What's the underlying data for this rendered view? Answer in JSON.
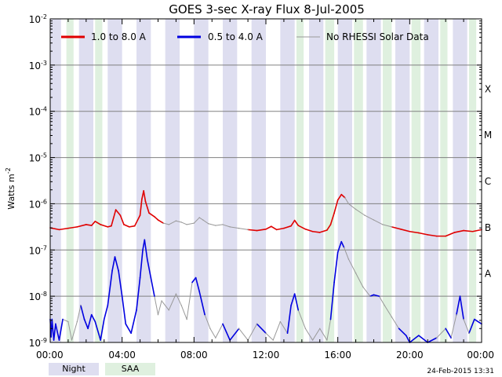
{
  "chart_data": {
    "type": "line",
    "title": "GOES 3-sec X-ray Flux    8-Jul-2005",
    "ylabel": "Watts m",
    "ylabel_sup": "-2",
    "yscale": "log",
    "ylim_exp": [
      -9,
      -2
    ],
    "y_ticks": [
      {
        "exp": -9,
        "label": "10",
        "sup": "-9"
      },
      {
        "exp": -8,
        "label": "10",
        "sup": "-8"
      },
      {
        "exp": -7,
        "label": "10",
        "sup": "-7"
      },
      {
        "exp": -6,
        "label": "10",
        "sup": "-6"
      },
      {
        "exp": -5,
        "label": "10",
        "sup": "-5"
      },
      {
        "exp": -4,
        "label": "10",
        "sup": "-4"
      },
      {
        "exp": -3,
        "label": "10",
        "sup": "-3"
      },
      {
        "exp": -2,
        "label": "10",
        "sup": "-2"
      }
    ],
    "xlim_hours": [
      0,
      24
    ],
    "x_ticks": [
      {
        "h": 0,
        "label": "00:00"
      },
      {
        "h": 4,
        "label": "04:00"
      },
      {
        "h": 8,
        "label": "08:00"
      },
      {
        "h": 12,
        "label": "12:00"
      },
      {
        "h": 16,
        "label": "16:00"
      },
      {
        "h": 20,
        "label": "20:00"
      },
      {
        "h": 24,
        "label": "00:00"
      }
    ],
    "flare_classes": [
      {
        "exp": -4,
        "label": "X"
      },
      {
        "exp": -5,
        "label": "M"
      },
      {
        "exp": -6,
        "label": "C"
      },
      {
        "exp": -7,
        "label": "B"
      },
      {
        "exp": -8,
        "label": "A"
      }
    ],
    "legend": [
      {
        "label": "1.0 to 8.0 A",
        "color": "#e00000"
      },
      {
        "label": "0.5 to 4.0 A",
        "color": "#0000e0"
      },
      {
        "label": "No RHESSI Solar Data",
        "color": "#999999"
      }
    ],
    "band_legend": [
      {
        "label": "Night",
        "color": "#dedef0"
      },
      {
        "label": "SAA",
        "color": "#dff0df"
      }
    ],
    "night_bands": [
      [
        0.0,
        0.6
      ],
      [
        1.6,
        2.4
      ],
      [
        3.2,
        4.0
      ],
      [
        4.8,
        5.6
      ],
      [
        6.4,
        7.2
      ],
      [
        8.0,
        8.8
      ],
      [
        9.6,
        10.4
      ],
      [
        11.2,
        12.0
      ],
      [
        12.8,
        13.6
      ],
      [
        14.4,
        15.2
      ],
      [
        16.0,
        16.8
      ],
      [
        17.6,
        18.4
      ],
      [
        19.2,
        20.0
      ],
      [
        20.8,
        21.6
      ],
      [
        22.4,
        23.2
      ]
    ],
    "saa_bands": [
      [
        0.9,
        1.3
      ],
      [
        2.5,
        2.9
      ],
      [
        13.7,
        14.1
      ],
      [
        15.3,
        15.8
      ],
      [
        16.9,
        17.4
      ],
      [
        18.5,
        19.0
      ],
      [
        20.1,
        20.6
      ],
      [
        21.7,
        22.1
      ],
      [
        23.3,
        23.7
      ]
    ],
    "series": [
      {
        "name": "1.0 to 8.0 A",
        "color": "#e00000",
        "gray_color": "#999999",
        "points": [
          [
            0.0,
            -6.52
          ],
          [
            0.5,
            -6.56
          ],
          [
            1.0,
            -6.53
          ],
          [
            1.5,
            -6.5
          ],
          [
            2.0,
            -6.45
          ],
          [
            2.3,
            -6.47
          ],
          [
            2.5,
            -6.38
          ],
          [
            2.8,
            -6.45
          ],
          [
            3.2,
            -6.5
          ],
          [
            3.4,
            -6.48
          ],
          [
            3.65,
            -6.13
          ],
          [
            3.9,
            -6.25
          ],
          [
            4.1,
            -6.45
          ],
          [
            4.4,
            -6.5
          ],
          [
            4.7,
            -6.48
          ],
          [
            5.0,
            -6.25
          ],
          [
            5.1,
            -5.9
          ],
          [
            5.2,
            -5.72
          ],
          [
            5.3,
            -5.95
          ],
          [
            5.5,
            -6.2
          ],
          [
            5.8,
            -6.28
          ],
          [
            6.0,
            -6.35
          ],
          [
            6.3,
            -6.42
          ],
          [
            6.6,
            -6.45
          ],
          [
            7.0,
            -6.37
          ],
          [
            7.3,
            -6.4
          ],
          [
            7.6,
            -6.45
          ],
          [
            8.0,
            -6.42
          ],
          [
            8.3,
            -6.3
          ],
          [
            8.5,
            -6.35
          ],
          [
            8.8,
            -6.43
          ],
          [
            9.2,
            -6.47
          ],
          [
            9.6,
            -6.45
          ],
          [
            10.0,
            -6.5
          ],
          [
            10.5,
            -6.53
          ],
          [
            11.0,
            -6.56
          ],
          [
            11.5,
            -6.58
          ],
          [
            12.0,
            -6.55
          ],
          [
            12.3,
            -6.49
          ],
          [
            12.6,
            -6.56
          ],
          [
            13.0,
            -6.53
          ],
          [
            13.4,
            -6.48
          ],
          [
            13.6,
            -6.36
          ],
          [
            13.8,
            -6.47
          ],
          [
            14.2,
            -6.55
          ],
          [
            14.6,
            -6.6
          ],
          [
            15.0,
            -6.62
          ],
          [
            15.4,
            -6.57
          ],
          [
            15.6,
            -6.45
          ],
          [
            15.8,
            -6.2
          ],
          [
            16.0,
            -5.92
          ],
          [
            16.2,
            -5.8
          ],
          [
            16.4,
            -5.87
          ],
          [
            16.6,
            -6.0
          ],
          [
            17.0,
            -6.12
          ],
          [
            17.5,
            -6.25
          ],
          [
            18.0,
            -6.35
          ],
          [
            18.5,
            -6.45
          ],
          [
            19.0,
            -6.5
          ],
          [
            19.5,
            -6.55
          ],
          [
            20.0,
            -6.6
          ],
          [
            20.5,
            -6.63
          ],
          [
            21.0,
            -6.67
          ],
          [
            21.5,
            -6.7
          ],
          [
            22.0,
            -6.7
          ],
          [
            22.5,
            -6.62
          ],
          [
            23.0,
            -6.58
          ],
          [
            23.5,
            -6.6
          ],
          [
            24.0,
            -6.56
          ]
        ],
        "gray_ranges": [
          [
            6.3,
            11.2
          ],
          [
            16.35,
            19.1
          ]
        ]
      },
      {
        "name": "0.5 to 4.0 A",
        "color": "#0000e0",
        "gray_color": "#999999",
        "points": [
          [
            0.0,
            -8.5
          ],
          [
            0.05,
            -8.88
          ],
          [
            0.1,
            -8.5
          ],
          [
            0.2,
            -8.95
          ],
          [
            0.3,
            -8.6
          ],
          [
            0.5,
            -8.95
          ],
          [
            0.7,
            -8.5
          ],
          [
            1.0,
            -8.55
          ],
          [
            1.2,
            -8.95
          ],
          [
            1.5,
            -8.55
          ],
          [
            1.7,
            -8.2
          ],
          [
            1.9,
            -8.5
          ],
          [
            2.1,
            -8.7
          ],
          [
            2.3,
            -8.4
          ],
          [
            2.5,
            -8.55
          ],
          [
            2.8,
            -8.95
          ],
          [
            3.0,
            -8.5
          ],
          [
            3.2,
            -8.2
          ],
          [
            3.45,
            -7.45
          ],
          [
            3.6,
            -7.15
          ],
          [
            3.8,
            -7.45
          ],
          [
            4.0,
            -8.0
          ],
          [
            4.2,
            -8.6
          ],
          [
            4.5,
            -8.8
          ],
          [
            4.8,
            -8.3
          ],
          [
            5.0,
            -7.6
          ],
          [
            5.15,
            -7.0
          ],
          [
            5.25,
            -6.78
          ],
          [
            5.4,
            -7.2
          ],
          [
            5.6,
            -7.6
          ],
          [
            5.8,
            -8.0
          ],
          [
            6.0,
            -8.4
          ],
          [
            6.2,
            -8.1
          ],
          [
            6.6,
            -8.3
          ],
          [
            7.0,
            -7.95
          ],
          [
            7.3,
            -8.2
          ],
          [
            7.6,
            -8.5
          ],
          [
            7.9,
            -7.7
          ],
          [
            8.1,
            -7.6
          ],
          [
            8.3,
            -7.9
          ],
          [
            8.6,
            -8.4
          ],
          [
            8.9,
            -8.7
          ],
          [
            9.2,
            -8.9
          ],
          [
            9.6,
            -8.6
          ],
          [
            10.0,
            -8.95
          ],
          [
            10.5,
            -8.7
          ],
          [
            11.0,
            -8.95
          ],
          [
            11.5,
            -8.6
          ],
          [
            12.0,
            -8.8
          ],
          [
            12.4,
            -8.95
          ],
          [
            12.8,
            -8.55
          ],
          [
            13.2,
            -8.8
          ],
          [
            13.4,
            -8.2
          ],
          [
            13.6,
            -7.95
          ],
          [
            13.8,
            -8.3
          ],
          [
            14.2,
            -8.7
          ],
          [
            14.6,
            -8.95
          ],
          [
            15.0,
            -8.7
          ],
          [
            15.4,
            -8.95
          ],
          [
            15.6,
            -8.5
          ],
          [
            15.8,
            -7.7
          ],
          [
            16.0,
            -7.05
          ],
          [
            16.2,
            -6.82
          ],
          [
            16.35,
            -6.95
          ],
          [
            16.6,
            -7.2
          ],
          [
            17.0,
            -7.5
          ],
          [
            17.4,
            -7.8
          ],
          [
            17.8,
            -8.0
          ],
          [
            18.0,
            -7.97
          ],
          [
            18.3,
            -8.0
          ],
          [
            18.6,
            -8.2
          ],
          [
            19.0,
            -8.45
          ],
          [
            19.4,
            -8.7
          ],
          [
            19.8,
            -8.85
          ],
          [
            20.0,
            -9.0
          ],
          [
            20.5,
            -8.85
          ],
          [
            21.0,
            -9.0
          ],
          [
            21.5,
            -8.9
          ],
          [
            22.0,
            -8.7
          ],
          [
            22.3,
            -8.9
          ],
          [
            22.6,
            -8.4
          ],
          [
            22.8,
            -8.0
          ],
          [
            23.0,
            -8.5
          ],
          [
            23.3,
            -8.8
          ],
          [
            23.6,
            -8.5
          ],
          [
            24.0,
            -8.6
          ]
        ],
        "gray_ranges": [
          [
            0.85,
            1.75
          ],
          [
            5.9,
            7.8
          ],
          [
            8.7,
            9.4
          ],
          [
            10.3,
            11.6
          ],
          [
            11.9,
            13.1
          ],
          [
            13.9,
            15.5
          ],
          [
            16.35,
            17.8
          ],
          [
            18.4,
            19.2
          ],
          [
            21.3,
            21.8
          ],
          [
            22.35,
            22.6
          ],
          [
            23.0,
            23.45
          ]
        ]
      }
    ],
    "timestamp": "24-Feb-2015 13:31"
  }
}
